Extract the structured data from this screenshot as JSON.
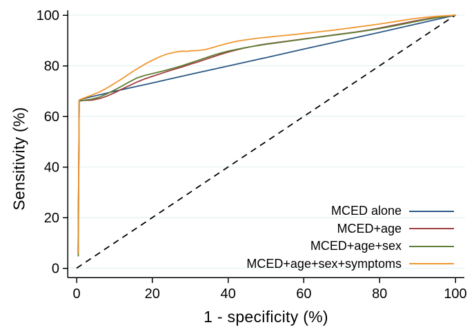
{
  "chart_data": {
    "type": "line",
    "title": "",
    "xlabel": "1 - specificity (%)",
    "ylabel": "Sensitivity (%)",
    "xlim": [
      0,
      100
    ],
    "ylim": [
      0,
      100
    ],
    "x_ticks": [
      0,
      20,
      40,
      60,
      80,
      100
    ],
    "y_ticks": [
      0,
      20,
      40,
      60,
      80,
      100
    ],
    "grid": "horizontal-only",
    "grid_color": "#e8f1f2",
    "axis_color": "#000000",
    "legend_position": "inside-bottom-right",
    "reference_line": {
      "name": "chance-diagonal",
      "style": "dashed",
      "color": "#000000",
      "points": [
        [
          0,
          0
        ],
        [
          100,
          100
        ]
      ]
    },
    "series": [
      {
        "name": "MCED alone",
        "color": "#2a5783",
        "points": [
          [
            0.4,
            6
          ],
          [
            0.7,
            66.3
          ],
          [
            1.5,
            66.9
          ],
          [
            10,
            69.9
          ],
          [
            20,
            73.2
          ],
          [
            30,
            76.6
          ],
          [
            40,
            79.9
          ],
          [
            50,
            83.2
          ],
          [
            60,
            86.6
          ],
          [
            70,
            89.9
          ],
          [
            80,
            93.2
          ],
          [
            90,
            96.6
          ],
          [
            100,
            100
          ]
        ]
      },
      {
        "name": "MCED+age",
        "color": "#9d3d3c",
        "points": [
          [
            0.4,
            5.5
          ],
          [
            0.7,
            66.3
          ],
          [
            2,
            66.3
          ],
          [
            4,
            66.4
          ],
          [
            6,
            67
          ],
          [
            8,
            68
          ],
          [
            10,
            69.3
          ],
          [
            12,
            70.8
          ],
          [
            14,
            72.2
          ],
          [
            16,
            73.6
          ],
          [
            18,
            74.8
          ],
          [
            20,
            75.8
          ],
          [
            22,
            76.8
          ],
          [
            24,
            77.8
          ],
          [
            26,
            78.7
          ],
          [
            28,
            79.6
          ],
          [
            30,
            80.6
          ],
          [
            32,
            81.5
          ],
          [
            34,
            82.5
          ],
          [
            36,
            83.5
          ],
          [
            38,
            84.5
          ],
          [
            40,
            85.4
          ],
          [
            42,
            86.2
          ],
          [
            44,
            86.9
          ],
          [
            46,
            87.5
          ],
          [
            48,
            88.1
          ],
          [
            50,
            88.6
          ],
          [
            53,
            89.2
          ],
          [
            56,
            89.8
          ],
          [
            59,
            90.4
          ],
          [
            62,
            91
          ],
          [
            65,
            91.6
          ],
          [
            68,
            92.2
          ],
          [
            71,
            92.8
          ],
          [
            74,
            93.4
          ],
          [
            77,
            94.1
          ],
          [
            80,
            94.9
          ],
          [
            83,
            95.8
          ],
          [
            86,
            96.7
          ],
          [
            89,
            97.6
          ],
          [
            92,
            98.4
          ],
          [
            95,
            99.1
          ],
          [
            100,
            100
          ]
        ]
      },
      {
        "name": "MCED+age+sex",
        "color": "#5f7d34",
        "points": [
          [
            0.45,
            4.8
          ],
          [
            0.7,
            66
          ],
          [
            2,
            66.4
          ],
          [
            4,
            66.8
          ],
          [
            6,
            67.6
          ],
          [
            8,
            68.9
          ],
          [
            10,
            70.4
          ],
          [
            12,
            72
          ],
          [
            14,
            73.7
          ],
          [
            16,
            75.2
          ],
          [
            18,
            76.2
          ],
          [
            20,
            76.9
          ],
          [
            22,
            77.6
          ],
          [
            24,
            78.4
          ],
          [
            26,
            79.2
          ],
          [
            28,
            80.1
          ],
          [
            30,
            81.1
          ],
          [
            32,
            82.1
          ],
          [
            34,
            83.1
          ],
          [
            36,
            84.1
          ],
          [
            38,
            85
          ],
          [
            40,
            85.8
          ],
          [
            42,
            86.4
          ],
          [
            44,
            87
          ],
          [
            46,
            87.5
          ],
          [
            48,
            88
          ],
          [
            50,
            88.5
          ],
          [
            53,
            89.1
          ],
          [
            56,
            89.7
          ],
          [
            59,
            90.3
          ],
          [
            62,
            90.9
          ],
          [
            65,
            91.5
          ],
          [
            68,
            92.1
          ],
          [
            71,
            92.7
          ],
          [
            74,
            93.3
          ],
          [
            77,
            94
          ],
          [
            80,
            94.7
          ],
          [
            83,
            95.5
          ],
          [
            86,
            96.4
          ],
          [
            89,
            97.3
          ],
          [
            92,
            98.2
          ],
          [
            95,
            99
          ],
          [
            100,
            100
          ]
        ]
      },
      {
        "name": "MCED+age+sex+symptoms",
        "color": "#f0962d",
        "points": [
          [
            0.4,
            5.8
          ],
          [
            0.7,
            66.5
          ],
          [
            2,
            67.3
          ],
          [
            4,
            68.4
          ],
          [
            6,
            69.6
          ],
          [
            8,
            71.2
          ],
          [
            10,
            73
          ],
          [
            12,
            74.9
          ],
          [
            14,
            76.9
          ],
          [
            16,
            78.8
          ],
          [
            18,
            80.6
          ],
          [
            20,
            82.2
          ],
          [
            22,
            83.6
          ],
          [
            24,
            84.7
          ],
          [
            26,
            85.4
          ],
          [
            28,
            85.8
          ],
          [
            29,
            85.7
          ],
          [
            30,
            85.9
          ],
          [
            32,
            86
          ],
          [
            34,
            86.4
          ],
          [
            36,
            87.2
          ],
          [
            38,
            88.1
          ],
          [
            40,
            88.9
          ],
          [
            42,
            89.6
          ],
          [
            44,
            90.1
          ],
          [
            46,
            90.5
          ],
          [
            48,
            90.9
          ],
          [
            50,
            91.2
          ],
          [
            53,
            91.7
          ],
          [
            56,
            92.1
          ],
          [
            59,
            92.6
          ],
          [
            62,
            93.1
          ],
          [
            65,
            93.6
          ],
          [
            68,
            94.1
          ],
          [
            71,
            94.7
          ],
          [
            74,
            95.3
          ],
          [
            77,
            95.9
          ],
          [
            80,
            96.5
          ],
          [
            83,
            97.2
          ],
          [
            86,
            97.9
          ],
          [
            89,
            98.6
          ],
          [
            92,
            99.1
          ],
          [
            95,
            99.5
          ],
          [
            100,
            100
          ]
        ]
      }
    ]
  }
}
